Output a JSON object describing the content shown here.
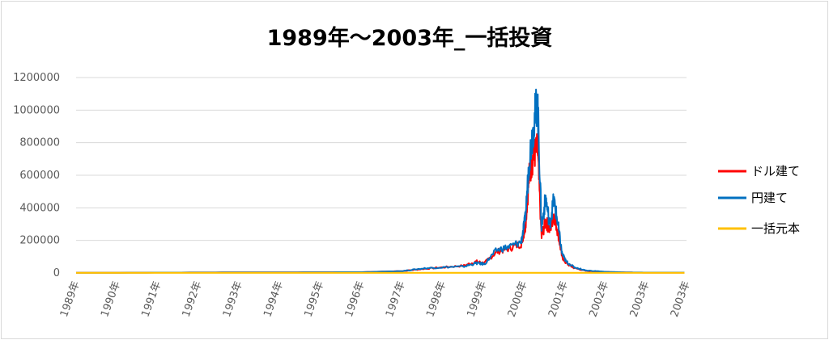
{
  "chart_data": {
    "type": "line",
    "title": "1989年～2003年_一括投資",
    "xlabel": "",
    "ylabel": "",
    "ylim": [
      0,
      1200000
    ],
    "yticks": [
      "0",
      "200000",
      "400000",
      "600000",
      "800000",
      "1000000",
      "1200000"
    ],
    "xticks": [
      "1989年",
      "1990年",
      "1991年",
      "1992年",
      "1993年",
      "1994年",
      "1995年",
      "1996年",
      "1997年",
      "1998年",
      "1999年",
      "2000年",
      "2001年",
      "2002年",
      "2003年",
      "2003年"
    ],
    "x": [
      1989.0,
      1992.0,
      1994.0,
      1996.0,
      1997.0,
      1997.5,
      1998.0,
      1998.5,
      1998.8,
      1999.0,
      1999.3,
      1999.6,
      1999.9,
      2000.0,
      2000.1,
      2000.2,
      2000.3,
      2000.4,
      2000.5,
      2000.6,
      2000.7,
      2000.8,
      2000.9,
      2001.0,
      2001.2,
      2001.5,
      2002.0,
      2002.5,
      2003.0,
      2003.9
    ],
    "grid": true,
    "legend": "right",
    "series": [
      {
        "name": "ドル建て",
        "color": "#ff0000",
        "values": [
          1000,
          3000,
          4000,
          5000,
          12000,
          25000,
          35000,
          45000,
          70000,
          60000,
          130000,
          150000,
          180000,
          280000,
          600000,
          720000,
          760000,
          220000,
          320000,
          260000,
          360000,
          250000,
          100000,
          60000,
          30000,
          12000,
          6000,
          3000,
          2000,
          2000
        ]
      },
      {
        "name": "円建て",
        "color": "#0070c0",
        "values": [
          1000,
          3000,
          4000,
          5000,
          12000,
          28000,
          35000,
          40000,
          60000,
          55000,
          140000,
          160000,
          190000,
          330000,
          700000,
          900000,
          1070000,
          280000,
          460000,
          300000,
          450000,
          300000,
          120000,
          70000,
          35000,
          15000,
          7000,
          3500,
          2500,
          2500
        ]
      },
      {
        "name": "一括元本",
        "color": "#ffc000",
        "values": [
          1000,
          1000,
          1000,
          1000,
          1000,
          1000,
          1000,
          1000,
          1000,
          1000,
          1000,
          1000,
          1000,
          1000,
          1000,
          1000,
          1000,
          1000,
          1000,
          1000,
          1000,
          1000,
          1000,
          1000,
          1000,
          1000,
          1000,
          1000,
          1000,
          1000
        ]
      }
    ]
  }
}
